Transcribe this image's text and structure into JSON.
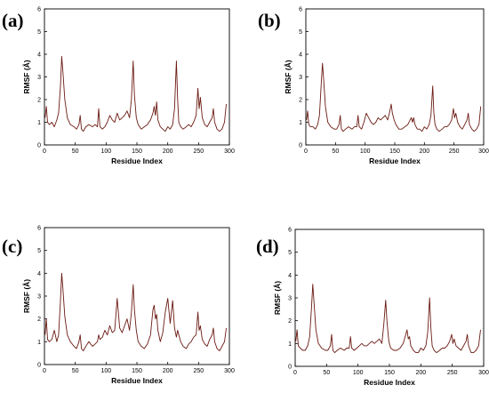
{
  "chart_data": [
    {
      "panel_label": "(a)",
      "type": "line",
      "xlabel": "Residue Index",
      "ylabel": "RMSF (Å)",
      "xlim": [
        0,
        300
      ],
      "ylim": [
        0,
        6
      ],
      "xticks": [
        "0",
        "50",
        "100",
        "150",
        "200",
        "250",
        "300"
      ],
      "yticks": [
        "0",
        "1",
        "2",
        "3",
        "4",
        "5",
        "6"
      ],
      "grid": false,
      "series": [
        {
          "color": "#6b1a12",
          "x": [
            1,
            3,
            5,
            8,
            12,
            16,
            20,
            23,
            26,
            28,
            30,
            33,
            37,
            42,
            48,
            52,
            56,
            58,
            60,
            63,
            67,
            72,
            78,
            82,
            86,
            88,
            90,
            94,
            98,
            102,
            106,
            110,
            114,
            118,
            122,
            126,
            130,
            134,
            138,
            141,
            144,
            146,
            149,
            152,
            157,
            162,
            167,
            172,
            176,
            178,
            180,
            182,
            184,
            188,
            192,
            196,
            200,
            204,
            208,
            211,
            214,
            216,
            218,
            221,
            225,
            230,
            234,
            238,
            242,
            246,
            249,
            251,
            253,
            256,
            260,
            264,
            268,
            272,
            274,
            276,
            280,
            284,
            288,
            292,
            295
          ],
          "y": [
            1.2,
            1.7,
            1.0,
            0.9,
            1.0,
            0.8,
            1.1,
            1.4,
            2.6,
            3.9,
            3.2,
            2.0,
            1.2,
            0.9,
            0.8,
            0.7,
            0.9,
            1.3,
            0.7,
            0.6,
            0.8,
            0.9,
            0.8,
            0.9,
            0.8,
            1.6,
            0.8,
            0.7,
            0.8,
            1.0,
            1.3,
            1.1,
            1.0,
            1.4,
            1.1,
            1.2,
            1.3,
            1.5,
            1.2,
            2.0,
            3.7,
            2.2,
            1.2,
            0.9,
            0.7,
            0.8,
            0.9,
            1.1,
            1.4,
            1.7,
            1.3,
            1.9,
            1.1,
            0.8,
            0.7,
            0.6,
            0.8,
            0.7,
            0.9,
            1.6,
            3.7,
            2.0,
            1.0,
            0.8,
            0.7,
            0.8,
            0.9,
            0.8,
            1.0,
            1.3,
            2.5,
            1.6,
            2.1,
            1.2,
            0.9,
            0.8,
            1.0,
            1.2,
            1.6,
            1.0,
            0.7,
            0.6,
            0.7,
            1.0,
            1.8
          ]
        }
      ]
    },
    {
      "panel_label": "(b)",
      "type": "line",
      "xlabel": "Residue Index",
      "ylabel": "RMSF (Å)",
      "xlim": [
        0,
        300
      ],
      "ylim": [
        0,
        6
      ],
      "xticks": [
        "0",
        "50",
        "100",
        "150",
        "200",
        "250",
        "300"
      ],
      "yticks": [
        "0",
        "1",
        "2",
        "3",
        "4",
        "5",
        "6"
      ],
      "grid": false,
      "series": [
        {
          "color": "#6b1a12",
          "x": [
            1,
            3,
            5,
            8,
            12,
            16,
            20,
            23,
            26,
            28,
            30,
            33,
            37,
            42,
            48,
            52,
            56,
            58,
            60,
            63,
            67,
            72,
            78,
            82,
            86,
            88,
            90,
            94,
            98,
            102,
            106,
            110,
            114,
            118,
            122,
            126,
            130,
            134,
            138,
            141,
            144,
            146,
            149,
            152,
            157,
            162,
            167,
            172,
            176,
            178,
            180,
            182,
            184,
            188,
            192,
            196,
            200,
            204,
            208,
            211,
            214,
            216,
            218,
            221,
            225,
            230,
            234,
            238,
            242,
            246,
            249,
            251,
            253,
            256,
            260,
            264,
            268,
            272,
            274,
            276,
            280,
            284,
            288,
            292,
            295
          ],
          "y": [
            1.1,
            1.5,
            0.9,
            0.8,
            0.8,
            0.7,
            0.9,
            1.3,
            2.7,
            3.6,
            2.9,
            1.7,
            1.0,
            0.8,
            0.7,
            0.7,
            0.9,
            1.3,
            0.7,
            0.6,
            0.7,
            0.8,
            0.7,
            0.8,
            0.8,
            1.3,
            0.8,
            0.7,
            1.0,
            1.4,
            1.2,
            1.0,
            0.9,
            1.0,
            1.2,
            1.1,
            1.2,
            1.3,
            1.1,
            1.4,
            1.8,
            1.4,
            1.1,
            0.9,
            0.7,
            0.7,
            0.8,
            0.9,
            1.1,
            1.2,
            1.0,
            1.2,
            0.9,
            0.7,
            0.7,
            0.6,
            0.8,
            0.7,
            0.9,
            1.3,
            2.6,
            1.4,
            0.9,
            0.7,
            0.6,
            0.7,
            0.8,
            0.8,
            0.9,
            1.1,
            1.6,
            1.2,
            1.4,
            1.0,
            0.8,
            0.7,
            0.9,
            1.1,
            1.4,
            0.9,
            0.7,
            0.6,
            0.7,
            0.9,
            1.7
          ]
        }
      ]
    },
    {
      "panel_label": "(c)",
      "type": "line",
      "xlabel": "Residue Index",
      "ylabel": "RMSF (Å)",
      "xlim": [
        0,
        300
      ],
      "ylim": [
        0,
        6
      ],
      "xticks": [
        "0",
        "50",
        "100",
        "150",
        "200",
        "250",
        "300"
      ],
      "yticks": [
        "0",
        "1",
        "2",
        "3",
        "4",
        "5",
        "6"
      ],
      "grid": false,
      "series": [
        {
          "color": "#6b1a12",
          "x": [
            1,
            3,
            5,
            8,
            12,
            16,
            20,
            23,
            26,
            28,
            30,
            33,
            37,
            42,
            48,
            52,
            56,
            58,
            60,
            63,
            67,
            72,
            78,
            82,
            86,
            88,
            90,
            94,
            98,
            102,
            106,
            110,
            114,
            118,
            122,
            126,
            130,
            134,
            138,
            141,
            144,
            146,
            149,
            152,
            157,
            162,
            167,
            172,
            176,
            178,
            180,
            182,
            184,
            188,
            192,
            196,
            200,
            204,
            208,
            211,
            214,
            216,
            218,
            221,
            225,
            230,
            234,
            238,
            242,
            246,
            249,
            251,
            253,
            256,
            260,
            264,
            268,
            272,
            274,
            276,
            280,
            284,
            288,
            292,
            295
          ],
          "y": [
            1.3,
            2.0,
            1.1,
            1.0,
            1.1,
            1.5,
            1.0,
            1.3,
            2.8,
            4.0,
            3.3,
            2.1,
            1.3,
            1.0,
            0.8,
            0.7,
            1.0,
            1.3,
            0.7,
            0.6,
            0.8,
            1.0,
            0.8,
            0.9,
            1.0,
            1.3,
            1.1,
            1.2,
            1.5,
            1.3,
            1.7,
            1.4,
            1.5,
            2.9,
            1.6,
            1.4,
            1.7,
            2.0,
            1.5,
            2.3,
            3.5,
            2.4,
            1.5,
            1.0,
            0.8,
            0.7,
            0.9,
            1.3,
            2.4,
            2.6,
            2.0,
            2.2,
            1.5,
            1.0,
            1.4,
            2.3,
            2.9,
            1.8,
            2.8,
            1.6,
            1.2,
            1.5,
            1.3,
            1.0,
            0.8,
            0.7,
            0.9,
            1.0,
            1.2,
            1.3,
            2.3,
            1.5,
            1.7,
            1.1,
            0.9,
            0.8,
            1.1,
            1.3,
            1.6,
            1.0,
            0.7,
            0.6,
            0.8,
            1.0,
            1.6
          ]
        }
      ]
    },
    {
      "panel_label": "(d)",
      "type": "line",
      "xlabel": "Residue Index",
      "ylabel": "RMSF (Å)",
      "xlim": [
        0,
        300
      ],
      "ylim": [
        0,
        6
      ],
      "xticks": [
        "0",
        "50",
        "100",
        "150",
        "200",
        "250",
        "300"
      ],
      "yticks": [
        "0",
        "1",
        "2",
        "3",
        "4",
        "5",
        "6"
      ],
      "grid": false,
      "series": [
        {
          "color": "#6b1a12",
          "x": [
            1,
            3,
            5,
            8,
            12,
            16,
            20,
            23,
            26,
            28,
            30,
            33,
            37,
            42,
            48,
            52,
            56,
            58,
            60,
            63,
            67,
            72,
            78,
            82,
            86,
            88,
            90,
            94,
            98,
            102,
            106,
            110,
            114,
            118,
            122,
            126,
            130,
            134,
            138,
            141,
            144,
            146,
            149,
            152,
            157,
            162,
            167,
            172,
            176,
            178,
            180,
            182,
            184,
            188,
            192,
            196,
            200,
            204,
            208,
            211,
            214,
            216,
            218,
            221,
            225,
            230,
            234,
            238,
            242,
            246,
            249,
            251,
            253,
            256,
            260,
            264,
            268,
            272,
            274,
            276,
            280,
            284,
            288,
            292,
            295
          ],
          "y": [
            1.1,
            1.6,
            0.9,
            0.8,
            0.7,
            0.7,
            0.9,
            1.3,
            2.6,
            3.6,
            2.8,
            1.6,
            1.0,
            0.8,
            0.7,
            0.7,
            0.9,
            1.4,
            0.7,
            0.6,
            0.7,
            0.8,
            0.7,
            0.8,
            0.8,
            1.3,
            0.8,
            0.7,
            0.8,
            0.9,
            1.0,
            0.9,
            0.9,
            1.0,
            1.1,
            1.0,
            1.1,
            1.2,
            1.0,
            1.8,
            2.9,
            2.0,
            1.1,
            0.8,
            0.7,
            0.7,
            0.8,
            1.0,
            1.4,
            1.6,
            1.2,
            1.3,
            0.9,
            0.7,
            0.6,
            0.6,
            0.8,
            0.7,
            0.9,
            1.5,
            3.0,
            1.7,
            0.9,
            0.7,
            0.6,
            0.7,
            0.8,
            0.8,
            0.9,
            1.1,
            1.4,
            1.0,
            1.2,
            0.9,
            0.8,
            0.7,
            0.9,
            1.1,
            1.4,
            0.9,
            0.6,
            0.6,
            0.7,
            0.9,
            1.6
          ]
        }
      ]
    }
  ]
}
